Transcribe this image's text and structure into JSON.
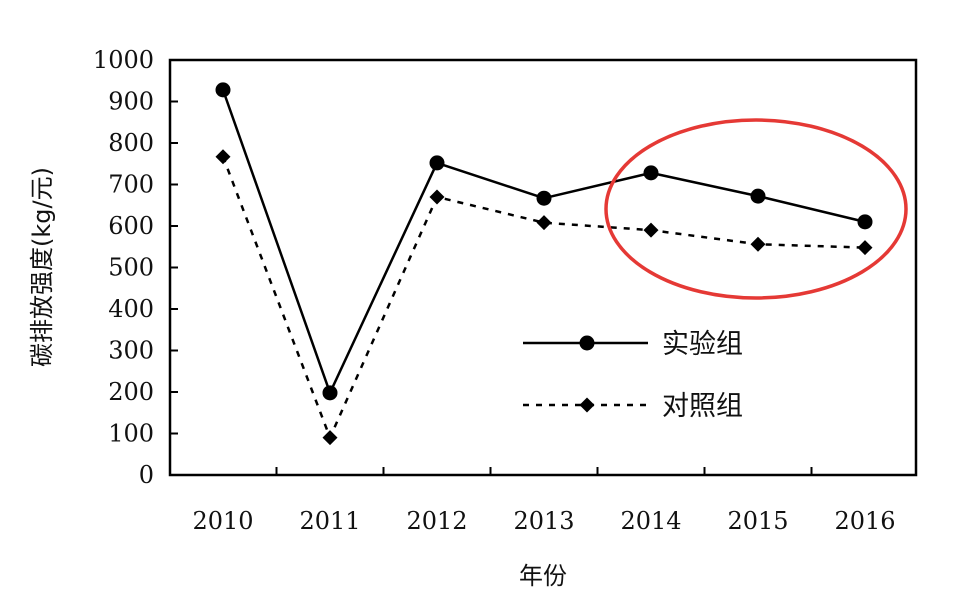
{
  "chart_data": {
    "type": "line",
    "categories": [
      "2010",
      "2011",
      "2012",
      "2013",
      "2014",
      "2015",
      "2016"
    ],
    "series": [
      {
        "name": "实验组",
        "values": [
          928,
          198,
          752,
          667,
          728,
          672,
          610
        ],
        "marker": "circle",
        "line": "solid",
        "color": "#000000"
      },
      {
        "name": "对照组",
        "values": [
          767,
          90,
          670,
          608,
          590,
          556,
          548
        ],
        "marker": "diamond",
        "line": "dotted",
        "color": "#000000"
      }
    ],
    "ylim": [
      0,
      1000
    ],
    "yticks": [
      0,
      100,
      200,
      300,
      400,
      500,
      600,
      700,
      800,
      900,
      1000
    ],
    "xlabel": "年份",
    "ylabel": "碳排放强度(kg/元)",
    "grid": false,
    "legend_position": "center-right",
    "annotation": {
      "shape": "ellipse",
      "color": "#e53935",
      "covers": [
        "2014",
        "2015",
        "2016"
      ]
    }
  }
}
